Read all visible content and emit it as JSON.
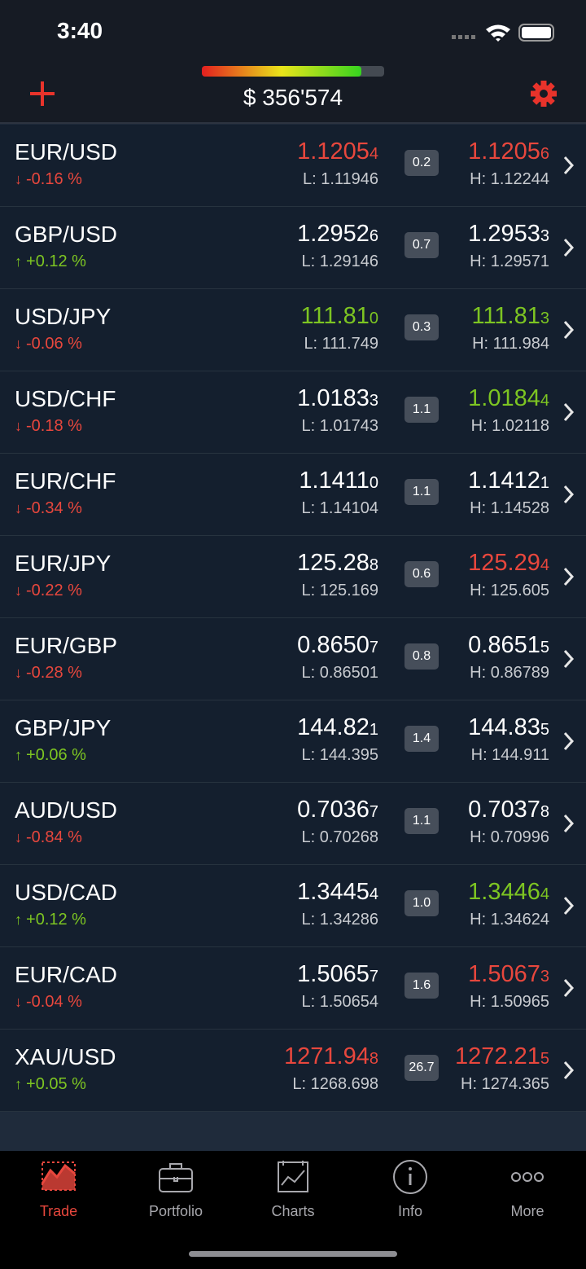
{
  "status_bar": {
    "time": "3:40"
  },
  "header": {
    "balance": "$ 356'574"
  },
  "rows": [
    {
      "pair": "EUR/USD",
      "trend": "down",
      "change": "-0.16 %",
      "bid": {
        "main": "1.1205",
        "pip": "4",
        "color": "red"
      },
      "low": "L: 1.11946",
      "spread": "0.2",
      "ask": {
        "main": "1.1205",
        "pip": "6",
        "color": "red"
      },
      "high": "H: 1.12244"
    },
    {
      "pair": "GBP/USD",
      "trend": "up",
      "change": "+0.12 %",
      "bid": {
        "main": "1.2952",
        "pip": "6",
        "color": "white"
      },
      "low": "L: 1.29146",
      "spread": "0.7",
      "ask": {
        "main": "1.2953",
        "pip": "3",
        "color": "white"
      },
      "high": "H: 1.29571"
    },
    {
      "pair": "USD/JPY",
      "trend": "down",
      "change": "-0.06 %",
      "bid": {
        "main": "111.81",
        "pip": "0",
        "color": "green"
      },
      "low": "L: 111.749",
      "spread": "0.3",
      "ask": {
        "main": "111.81",
        "pip": "3",
        "color": "green"
      },
      "high": "H: 111.984"
    },
    {
      "pair": "USD/CHF",
      "trend": "down",
      "change": "-0.18 %",
      "bid": {
        "main": "1.0183",
        "pip": "3",
        "color": "white"
      },
      "low": "L: 1.01743",
      "spread": "1.1",
      "ask": {
        "main": "1.0184",
        "pip": "4",
        "color": "green"
      },
      "high": "H: 1.02118"
    },
    {
      "pair": "EUR/CHF",
      "trend": "down",
      "change": "-0.34 %",
      "bid": {
        "main": "1.1411",
        "pip": "0",
        "color": "white"
      },
      "low": "L: 1.14104",
      "spread": "1.1",
      "ask": {
        "main": "1.1412",
        "pip": "1",
        "color": "white"
      },
      "high": "H: 1.14528"
    },
    {
      "pair": "EUR/JPY",
      "trend": "down",
      "change": "-0.22 %",
      "bid": {
        "main": "125.28",
        "pip": "8",
        "color": "white"
      },
      "low": "L: 125.169",
      "spread": "0.6",
      "ask": {
        "main": "125.29",
        "pip": "4",
        "color": "red"
      },
      "high": "H: 125.605"
    },
    {
      "pair": "EUR/GBP",
      "trend": "down",
      "change": "-0.28 %",
      "bid": {
        "main": "0.8650",
        "pip": "7",
        "color": "white"
      },
      "low": "L: 0.86501",
      "spread": "0.8",
      "ask": {
        "main": "0.8651",
        "pip": "5",
        "color": "white"
      },
      "high": "H: 0.86789"
    },
    {
      "pair": "GBP/JPY",
      "trend": "up",
      "change": "+0.06 %",
      "bid": {
        "main": "144.82",
        "pip": "1",
        "color": "white"
      },
      "low": "L: 144.395",
      "spread": "1.4",
      "ask": {
        "main": "144.83",
        "pip": "5",
        "color": "white"
      },
      "high": "H: 144.911"
    },
    {
      "pair": "AUD/USD",
      "trend": "down",
      "change": "-0.84 %",
      "bid": {
        "main": "0.7036",
        "pip": "7",
        "color": "white"
      },
      "low": "L: 0.70268",
      "spread": "1.1",
      "ask": {
        "main": "0.7037",
        "pip": "8",
        "color": "white"
      },
      "high": "H: 0.70996"
    },
    {
      "pair": "USD/CAD",
      "trend": "up",
      "change": "+0.12 %",
      "bid": {
        "main": "1.3445",
        "pip": "4",
        "color": "white"
      },
      "low": "L: 1.34286",
      "spread": "1.0",
      "ask": {
        "main": "1.3446",
        "pip": "4",
        "color": "green"
      },
      "high": "H: 1.34624"
    },
    {
      "pair": "EUR/CAD",
      "trend": "down",
      "change": "-0.04 %",
      "bid": {
        "main": "1.5065",
        "pip": "7",
        "color": "white"
      },
      "low": "L: 1.50654",
      "spread": "1.6",
      "ask": {
        "main": "1.5067",
        "pip": "3",
        "color": "red"
      },
      "high": "H: 1.50965"
    },
    {
      "pair": "XAU/USD",
      "trend": "up",
      "change": "+0.05 %",
      "bid": {
        "main": "1271.94",
        "pip": "8",
        "color": "red"
      },
      "low": "L: 1268.698",
      "spread": "26.7",
      "ask": {
        "main": "1272.21",
        "pip": "5",
        "color": "red"
      },
      "high": "H: 1274.365"
    }
  ],
  "tabs": [
    {
      "label": "Trade",
      "active": true
    },
    {
      "label": "Portfolio",
      "active": false
    },
    {
      "label": "Charts",
      "active": false
    },
    {
      "label": "Info",
      "active": false
    },
    {
      "label": "More",
      "active": false
    }
  ]
}
